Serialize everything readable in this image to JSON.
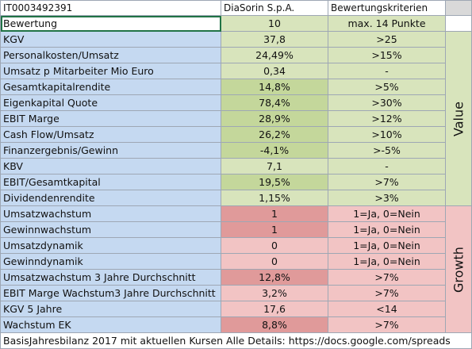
{
  "header": {
    "isin": "IT0003492391",
    "company": "DiaSorin S.p.A.",
    "criteria": "Bewertungskriterien"
  },
  "rating": {
    "label": "Bewertung",
    "value": "10",
    "criteria": "max. 14 Punkte"
  },
  "value_rows": [
    {
      "label": "KGV",
      "value": "37,8",
      "criteria": ">25",
      "color": "#d8e4bc"
    },
    {
      "label": "Personalkosten/Umsatz",
      "value": "24,49%",
      "criteria": ">15%",
      "color": "#d8e4bc"
    },
    {
      "label": "Umsatz p Mitarbeiter Mio Euro",
      "value": "0,34",
      "criteria": "-",
      "color": "#d8e4bc"
    },
    {
      "label": "Gesamtkapitalrendite",
      "value": "14,8%",
      "criteria": ">5%",
      "color": "#c4d79b"
    },
    {
      "label": "Eigenkapital Quote",
      "value": "78,4%",
      "criteria": ">30%",
      "color": "#c4d79b"
    },
    {
      "label": "EBIT Marge",
      "value": "28,9%",
      "criteria": ">12%",
      "color": "#c4d79b"
    },
    {
      "label": "Cash Flow/Umsatz",
      "value": "26,2%",
      "criteria": ">10%",
      "color": "#c4d79b"
    },
    {
      "label": "Finanzergebnis/Gewinn",
      "value": "-4,1%",
      "criteria": ">-5%",
      "color": "#c4d79b"
    },
    {
      "label": "KBV",
      "value": "7,1",
      "criteria": "-",
      "color": "#d8e4bc"
    },
    {
      "label": "EBIT/Gesamtkapital",
      "value": "19,5%",
      "criteria": ">7%",
      "color": "#c4d79b"
    },
    {
      "label": "Dividendenrendite",
      "value": "1,15%",
      "criteria": ">3%",
      "color": "#d8e4bc"
    }
  ],
  "growth_rows": [
    {
      "label": "Umsatzwachstum",
      "value": "1",
      "criteria": "1=Ja, 0=Nein",
      "color": "#e09a9a"
    },
    {
      "label": "Gewinnwachstum",
      "value": "1",
      "criteria": "1=Ja, 0=Nein",
      "color": "#e09a9a"
    },
    {
      "label": "Umsatzdynamik",
      "value": "0",
      "criteria": "1=Ja, 0=Nein",
      "color": "#f2c4c4"
    },
    {
      "label": "Gewinndynamik",
      "value": "0",
      "criteria": "1=Ja, 0=Nein",
      "color": "#f2c4c4"
    },
    {
      "label": "Umsatzwachstum 3 Jahre Durchschnitt",
      "value": "12,8%",
      "criteria": ">7%",
      "color": "#e09a9a"
    },
    {
      "label": "EBIT Marge Wachstum3 Jahre Durchschnitt",
      "value": "3,2%",
      "criteria": ">7%",
      "color": "#f2c4c4"
    },
    {
      "label": "KGV 5 Jahre",
      "value": "17,6",
      "criteria": "<14",
      "color": "#f2c4c4"
    },
    {
      "label": "Wachstum EK",
      "value": "8,8%",
      "criteria": ">7%",
      "color": "#e09a9a"
    }
  ],
  "side_labels": {
    "value": "Value",
    "growth": "Growth"
  },
  "footer": "BasisJahresbilanz 2017 mit aktuellen Kursen Alle Details: https://docs.google.com/spreads"
}
